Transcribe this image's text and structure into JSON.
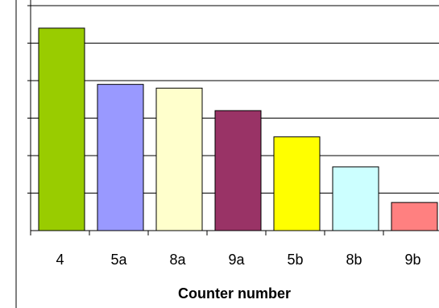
{
  "chart_data": {
    "type": "bar",
    "categories": [
      "4",
      "5a",
      "8a",
      "9a",
      "5b",
      "8b",
      "9b"
    ],
    "values": [
      5.4,
      3.9,
      3.8,
      3.2,
      2.5,
      1.7,
      0.75
    ],
    "bar_colors": [
      "#99cc00",
      "#9999ff",
      "#ffffcc",
      "#993366",
      "#ffff00",
      "#ccffff",
      "#ff8080"
    ],
    "xlabel": "Counter number",
    "ylim": [
      0,
      6
    ],
    "y_gridlines": [
      1,
      2,
      3,
      4,
      5,
      6
    ],
    "grid": true,
    "legend": "none"
  }
}
